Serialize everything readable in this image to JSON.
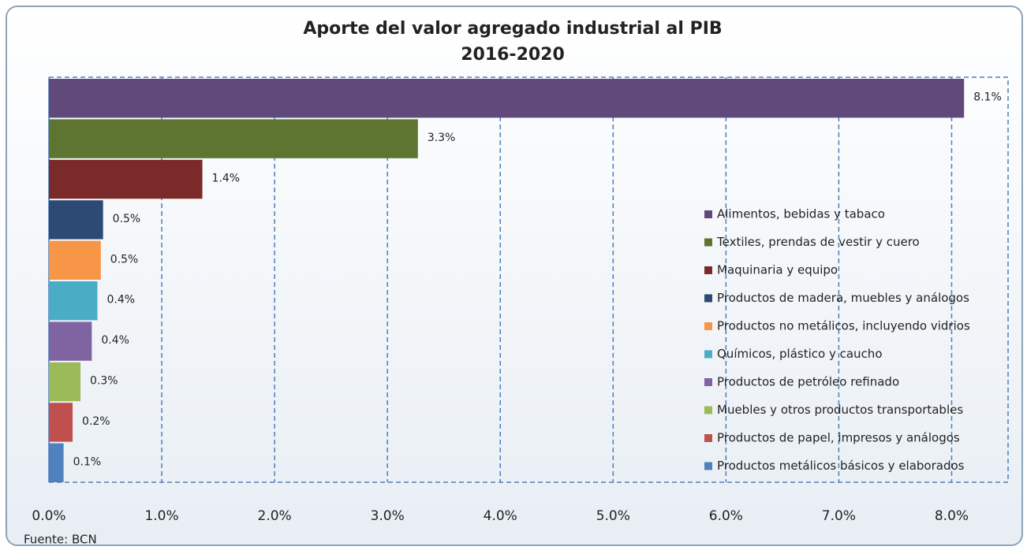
{
  "chart_data": {
    "type": "barh",
    "title": "Aporte del valor agregado industrial al PIB",
    "subtitle": "2016-2020",
    "source": "Fuente: BCN",
    "categories": [
      "Alimentos, bebidas y tabaco",
      "Textiles, prendas de vestir y cuero",
      "Maquinaria y equipo",
      "Productos de madera, muebles y análogos",
      "Productos no metálicos, incluyendo vidrios",
      "Químicos, plástico y caucho",
      "Productos de petróleo refinado",
      "Muebles y otros productos transportables",
      "Productos de papel, impresos y análogos",
      "Productos metálicos básicos y elaborados"
    ],
    "values": [
      8.11,
      3.27,
      1.36,
      0.48,
      0.46,
      0.43,
      0.38,
      0.28,
      0.21,
      0.13
    ],
    "value_labels": [
      "8.1%",
      "3.3%",
      "1.4%",
      "0.5%",
      "0.5%",
      "0.4%",
      "0.4%",
      "0.3%",
      "0.2%",
      "0.1%"
    ],
    "colors": [
      "#604a7b",
      "#5e7431",
      "#7b2a2a",
      "#2c4a73",
      "#f79646",
      "#4bacc6",
      "#8064a2",
      "#9bbb59",
      "#c0504d",
      "#4f81bd"
    ],
    "xlim": [
      0,
      8.5
    ],
    "xticks": [
      {
        "value": 0,
        "label": "0.0%"
      },
      {
        "value": 1,
        "label": "1.0%"
      },
      {
        "value": 2,
        "label": "2.0%"
      },
      {
        "value": 3,
        "label": "3.0%"
      },
      {
        "value": 4,
        "label": "4.0%"
      },
      {
        "value": 5,
        "label": "5.0%"
      },
      {
        "value": 6,
        "label": "6.0%"
      },
      {
        "value": 7,
        "label": "7.0%"
      },
      {
        "value": 8,
        "label": "8.0%"
      }
    ],
    "grid": true,
    "legend": "right"
  }
}
